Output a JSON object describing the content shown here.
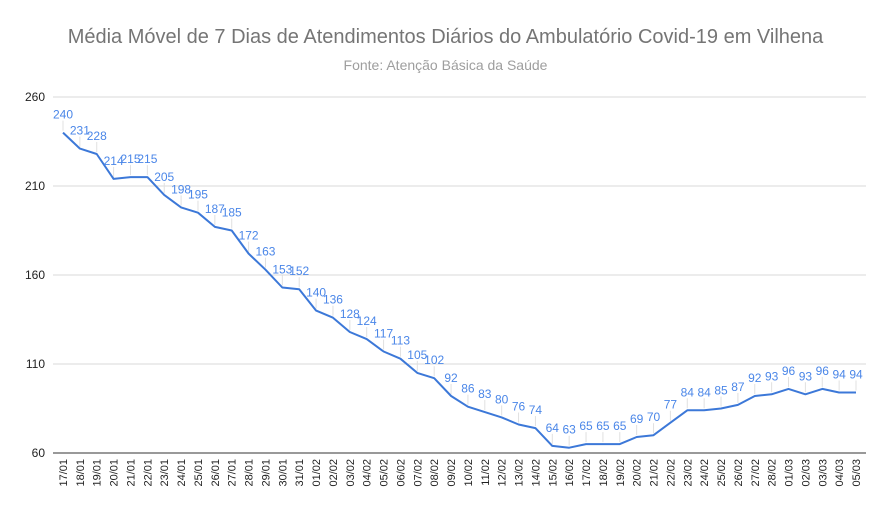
{
  "chart_data": {
    "type": "line",
    "title": "Média Móvel de 7 Dias de Atendimentos Diários do Ambulatório Covid-19 em Vilhena",
    "subtitle": "Fonte: Atenção Básica da Saúde",
    "xlabel": "",
    "ylabel": "",
    "ylim": [
      60,
      260
    ],
    "yticks": [
      60,
      110,
      160,
      210,
      260
    ],
    "grid": true,
    "line_color": "#3c78d8",
    "label_color": "#4a86e8",
    "categories": [
      "17/01",
      "18/01",
      "19/01",
      "20/01",
      "21/01",
      "22/01",
      "23/01",
      "24/01",
      "25/01",
      "26/01",
      "27/01",
      "28/01",
      "29/01",
      "30/01",
      "31/01",
      "01/02",
      "02/02",
      "03/02",
      "04/02",
      "05/02",
      "06/02",
      "07/02",
      "08/02",
      "09/02",
      "10/02",
      "11/02",
      "12/02",
      "13/02",
      "14/02",
      "15/02",
      "16/02",
      "17/02",
      "18/02",
      "19/02",
      "20/02",
      "21/02",
      "22/02",
      "23/02",
      "24/02",
      "25/02",
      "26/02",
      "27/02",
      "28/02",
      "01/03",
      "02/03",
      "03/03",
      "04/03",
      "05/03"
    ],
    "series": [
      {
        "values": [
          240,
          231,
          228,
          214,
          215,
          215,
          205,
          198,
          195,
          187,
          185,
          172,
          163,
          153,
          152,
          140,
          136,
          128,
          124,
          117,
          113,
          105,
          102,
          92,
          86,
          83,
          80,
          76,
          74,
          64,
          63,
          65,
          65,
          65,
          69,
          70,
          77,
          84,
          84,
          85,
          87,
          92,
          93,
          96,
          93,
          96,
          94,
          94
        ]
      }
    ],
    "data_labels": [
      "240",
      "231",
      "228",
      "214",
      "215",
      "215",
      "205",
      "198",
      "195",
      "187",
      "185",
      "172",
      "163",
      "153",
      "152",
      "140",
      "136",
      "128",
      "124",
      "117",
      "113",
      "105",
      "102",
      "92",
      "86",
      "83",
      "80",
      "76",
      "74",
      "64",
      "63",
      "65",
      "65",
      "65",
      "69",
      "70",
      "77",
      "84",
      "84",
      "85",
      "87",
      "92",
      "93",
      "96",
      "93",
      "96",
      "94",
      "94"
    ]
  }
}
